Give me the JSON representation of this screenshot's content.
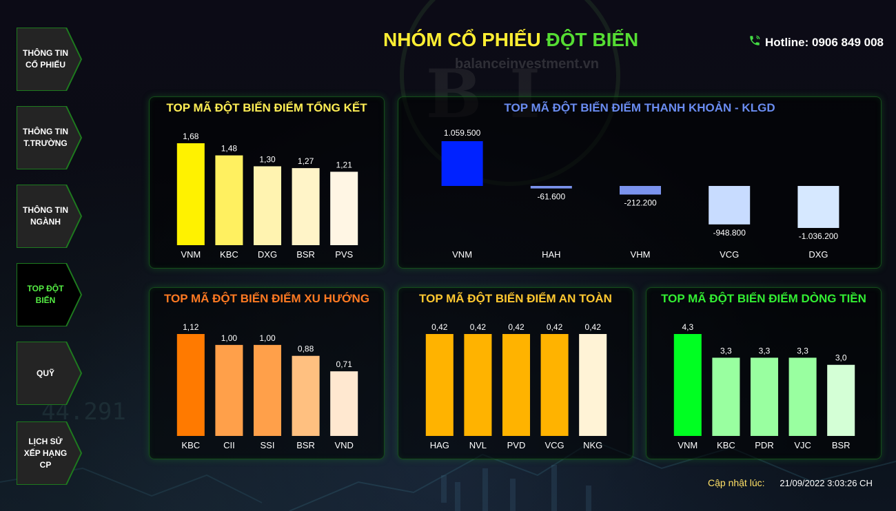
{
  "header": {
    "title_part1": "NHÓM CỔ PHIẾU",
    "title_part2": "ĐỘT BIẾN",
    "hotline": "Hotline: 0906 849 008",
    "phone_icon": "phone-icon"
  },
  "watermark": {
    "site": "balanceinvestment.vn",
    "logo": "BI"
  },
  "background": {
    "ticker_number": "44.291"
  },
  "sidebar": {
    "items": [
      {
        "label": "THÔNG TIN CỔ PHIẾU",
        "active": false
      },
      {
        "label": "THÔNG TIN T.TRƯỜNG",
        "active": false
      },
      {
        "label": "THÔNG TIN NGÀNH",
        "active": false
      },
      {
        "label": "TOP ĐỘT BIẾN",
        "active": true
      },
      {
        "label": "QUỸ",
        "active": false
      },
      {
        "label": "LỊCH SỬ XẾP HẠNG CP",
        "active": false
      }
    ]
  },
  "footer": {
    "label": "Cập nhật lúc:",
    "value": "21/09/2022 3:03:26 CH"
  },
  "chart_data": [
    {
      "type": "bar",
      "title": "TOP MÃ ĐỘT BIẾN ĐIỂM TỔNG KẾT",
      "title_color": "#ffee55",
      "categories": [
        "VNM",
        "KBC",
        "DXG",
        "BSR",
        "PVS"
      ],
      "values": [
        1.68,
        1.48,
        1.3,
        1.27,
        1.21
      ],
      "value_labels": [
        "1,68",
        "1,48",
        "1,30",
        "1,27",
        "1,21"
      ],
      "bar_colors": [
        "#fff200",
        "#fff060",
        "#fff3b0",
        "#fff4c8",
        "#fff6e4"
      ],
      "ylim": [
        0,
        1.68
      ]
    },
    {
      "type": "bar",
      "title": "TOP MÃ ĐỘT BIẾN ĐIỂM THANH KHOẢN - KLGD",
      "title_color": "#6a8cf0",
      "categories": [
        "VNM",
        "HAH",
        "VHM",
        "VCG",
        "DXG"
      ],
      "values": [
        1059500,
        -61600,
        -212200,
        -948800,
        -1036200
      ],
      "value_labels": [
        "1.059.500",
        "-61.600",
        "-212.200",
        "-948.800",
        "-1.036.200"
      ],
      "bar_colors": [
        "#0022ff",
        "#7b93ee",
        "#7b93ee",
        "#c8dcff",
        "#d6e8ff"
      ],
      "ylim": [
        -1036200,
        1059500
      ]
    },
    {
      "type": "bar",
      "title": "TOP MÃ ĐỘT BIẾN ĐIỂM XU HƯỚNG",
      "title_color": "#ff7a22",
      "categories": [
        "KBC",
        "CII",
        "SSI",
        "BSR",
        "VND"
      ],
      "values": [
        1.12,
        1.0,
        1.0,
        0.88,
        0.71
      ],
      "value_labels": [
        "1,12",
        "1,00",
        "1,00",
        "0,88",
        "0,71"
      ],
      "bar_colors": [
        "#ff7a00",
        "#ffa04a",
        "#ffa04a",
        "#ffc080",
        "#ffe8d0"
      ],
      "ylim": [
        0,
        1.12
      ]
    },
    {
      "type": "bar",
      "title": "TOP MÃ ĐỘT BIẾN ĐIỂM AN TOÀN",
      "title_color": "#ffc830",
      "categories": [
        "HAG",
        "NVL",
        "PVD",
        "VCG",
        "NKG"
      ],
      "values": [
        0.42,
        0.42,
        0.42,
        0.42,
        0.42
      ],
      "value_labels": [
        "0,42",
        "0,42",
        "0,42",
        "0,42",
        "0,42"
      ],
      "bar_colors": [
        "#ffb300",
        "#ffb300",
        "#ffb300",
        "#ffb300",
        "#fff3d6"
      ],
      "ylim": [
        0,
        0.42
      ]
    },
    {
      "type": "bar",
      "title": "TOP MÃ ĐỘT BIẾN ĐIỂM DÒNG TIỀN",
      "title_color": "#33ee33",
      "categories": [
        "VNM",
        "KBC",
        "PDR",
        "VJC",
        "BSR"
      ],
      "values": [
        4.3,
        3.3,
        3.3,
        3.3,
        3.0
      ],
      "value_labels": [
        "4,3",
        "3,3",
        "3,3",
        "3,3",
        "3,0"
      ],
      "bar_colors": [
        "#00ff22",
        "#99ffa0",
        "#99ffa0",
        "#99ffa0",
        "#d4ffd6"
      ],
      "ylim": [
        0,
        4.3
      ]
    }
  ]
}
